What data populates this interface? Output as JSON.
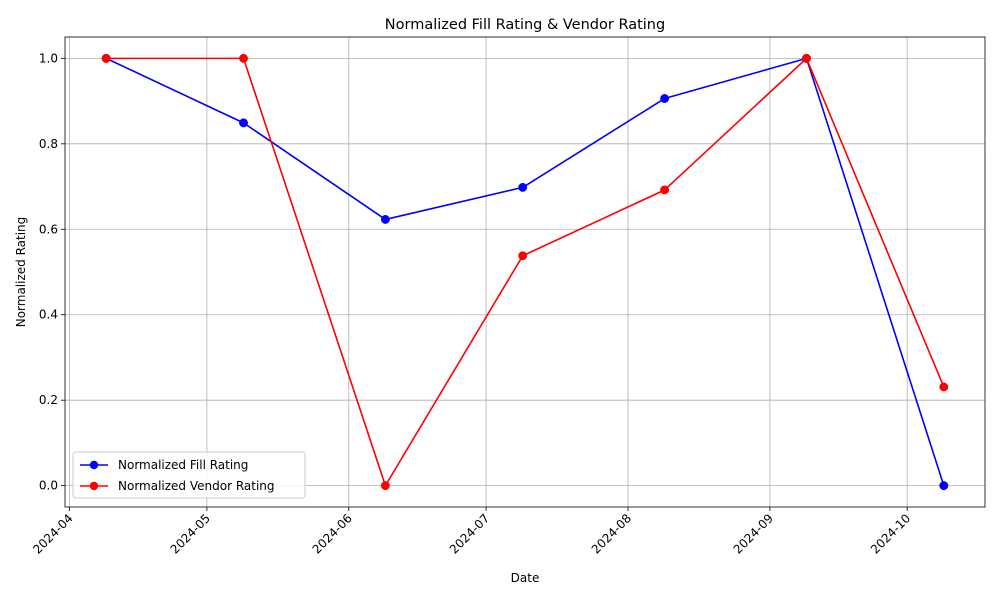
{
  "chart_data": {
    "type": "line",
    "title": "Normalized Fill Rating & Vendor Rating",
    "xlabel": "Date",
    "ylabel": "Normalized Rating",
    "x": [
      "2024-04-09",
      "2024-05-09",
      "2024-06-09",
      "2024-07-09",
      "2024-08-09",
      "2024-09-09",
      "2024-10-09"
    ],
    "x_ticks": [
      "2024-04",
      "2024-05",
      "2024-06",
      "2024-07",
      "2024-08",
      "2024-09",
      "2024-10"
    ],
    "x_tick_dates": [
      "2024-04-01",
      "2024-05-01",
      "2024-06-01",
      "2024-07-01",
      "2024-08-01",
      "2024-09-01",
      "2024-10-01"
    ],
    "xlim": [
      "2024-03-31",
      "2024-10-18"
    ],
    "y_ticks": [
      "0.0",
      "0.2",
      "0.4",
      "0.6",
      "0.8",
      "1.0"
    ],
    "ylim": [
      -0.05,
      1.05
    ],
    "grid": true,
    "legend_position": "lower-left",
    "series": [
      {
        "name": "Normalized Fill Rating",
        "color": "#0000ff",
        "marker": "circle",
        "values": [
          1.0,
          0.849,
          0.623,
          0.698,
          0.906,
          1.0,
          0.0
        ]
      },
      {
        "name": "Normalized Vendor Rating",
        "color": "#ff0000",
        "marker": "circle",
        "values": [
          1.0,
          1.0,
          0.0,
          0.538,
          0.692,
          1.0,
          0.231
        ]
      }
    ]
  }
}
